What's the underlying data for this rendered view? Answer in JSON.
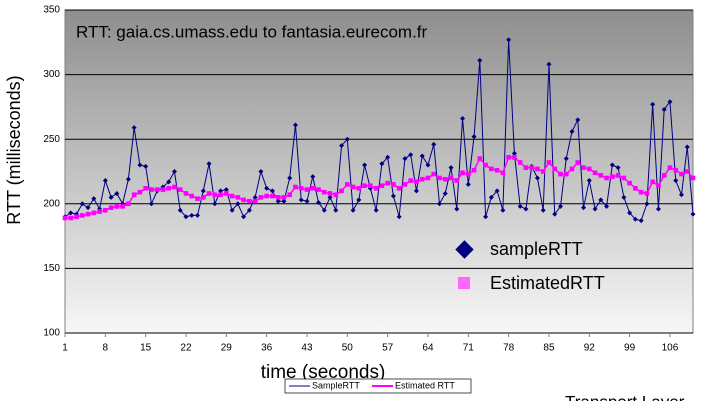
{
  "chart_data": {
    "type": "line",
    "title": "RTT: gaia.cs.umass.edu to fantasia.eurecom.fr",
    "x_label": "time (seconds)",
    "y_label": "RTT (milliseconds)",
    "x": [
      1,
      2,
      3,
      4,
      5,
      6,
      7,
      8,
      9,
      10,
      11,
      12,
      13,
      14,
      15,
      16,
      17,
      18,
      19,
      20,
      21,
      22,
      23,
      24,
      25,
      26,
      27,
      28,
      29,
      30,
      31,
      32,
      33,
      34,
      35,
      36,
      37,
      38,
      39,
      40,
      41,
      42,
      43,
      44,
      45,
      46,
      47,
      48,
      49,
      50,
      51,
      52,
      53,
      54,
      55,
      56,
      57,
      58,
      59,
      60,
      61,
      62,
      63,
      64,
      65,
      66,
      67,
      68,
      69,
      70,
      71,
      72,
      73,
      74,
      75,
      76,
      77,
      78,
      79,
      80,
      81,
      82,
      83,
      84,
      85,
      86,
      87,
      88,
      89,
      90,
      91,
      92,
      93,
      94,
      95,
      96,
      97,
      98,
      99,
      100,
      101,
      102,
      103,
      104,
      105,
      106,
      107,
      108,
      109,
      110
    ],
    "xlim": [
      1,
      110
    ],
    "xticks": [
      1,
      8,
      15,
      22,
      29,
      36,
      43,
      50,
      57,
      64,
      71,
      78,
      85,
      92,
      99,
      106
    ],
    "ylim": [
      100,
      350
    ],
    "yticks": [
      100,
      150,
      200,
      250,
      300,
      350
    ],
    "grid": true,
    "series": [
      {
        "name": "SampleRTT",
        "color": "#000080",
        "values": [
          190,
          193,
          192,
          200,
          197,
          204,
          196,
          218,
          205,
          208,
          200,
          219,
          259,
          230,
          229,
          200,
          210,
          213,
          217,
          225,
          195,
          190,
          191,
          191,
          210,
          231,
          200,
          210,
          211,
          195,
          200,
          190,
          195,
          205,
          225,
          212,
          210,
          202,
          202,
          220,
          261,
          203,
          202,
          221,
          201,
          195,
          205,
          195,
          245,
          250,
          195,
          203,
          230,
          212,
          195,
          231,
          236,
          206,
          190,
          235,
          238,
          210,
          237,
          230,
          246,
          200,
          208,
          228,
          196,
          266,
          215,
          252,
          311,
          190,
          205,
          210,
          195,
          327,
          239,
          198,
          196,
          229,
          220,
          195,
          308,
          192,
          198,
          235,
          256,
          265,
          197,
          218,
          196,
          203,
          198,
          230,
          228,
          205,
          193,
          188,
          187,
          200,
          277,
          196,
          273,
          279,
          218,
          207,
          244,
          192
        ]
      },
      {
        "name": "Estimated RTT",
        "color": "#ff00ff",
        "values": [
          189,
          189,
          190,
          191,
          192,
          193,
          194,
          195,
          197,
          198,
          198,
          200,
          207,
          209,
          212,
          211,
          211,
          211,
          212,
          213,
          211,
          208,
          206,
          204,
          205,
          208,
          207,
          207,
          208,
          206,
          205,
          203,
          202,
          202,
          205,
          206,
          206,
          205,
          205,
          207,
          213,
          212,
          211,
          212,
          211,
          209,
          208,
          207,
          210,
          215,
          213,
          212,
          214,
          214,
          212,
          214,
          216,
          215,
          212,
          215,
          218,
          217,
          219,
          220,
          223,
          220,
          219,
          220,
          218,
          224,
          223,
          226,
          235,
          230,
          227,
          226,
          224,
          236,
          236,
          232,
          228,
          228,
          227,
          225,
          232,
          227,
          223,
          223,
          227,
          232,
          228,
          227,
          224,
          222,
          220,
          221,
          222,
          220,
          216,
          212,
          209,
          208,
          217,
          214,
          222,
          228,
          226,
          223,
          225,
          220
        ]
      }
    ],
    "annotations": [
      "sampleRTT",
      "EstimatedRTT"
    ],
    "footer": "Transport Layer"
  }
}
